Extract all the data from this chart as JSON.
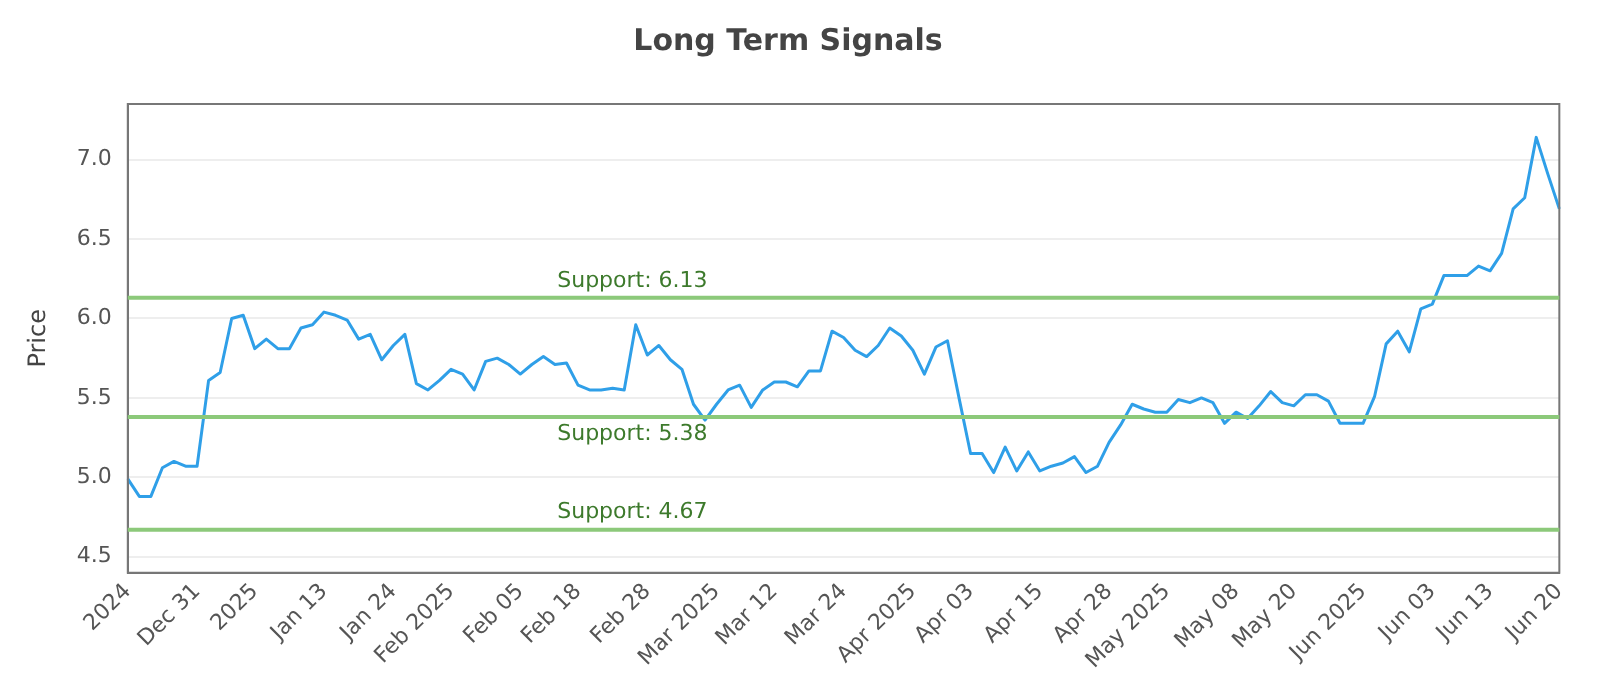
{
  "chart_data": {
    "type": "line",
    "title": "Long Term Signals",
    "ylabel": "Price",
    "categories": [
      "2024",
      null,
      null,
      null,
      null,
      null,
      "Dec 31",
      null,
      null,
      null,
      null,
      "2025",
      null,
      null,
      null,
      null,
      null,
      "Jan 13",
      null,
      null,
      null,
      null,
      null,
      "Jan 24",
      null,
      null,
      null,
      null,
      "Feb 2025",
      null,
      null,
      null,
      null,
      null,
      "Feb 05",
      null,
      null,
      null,
      null,
      "Feb 18",
      null,
      null,
      null,
      null,
      null,
      "Feb 28",
      null,
      null,
      null,
      null,
      null,
      "Mar 2025",
      null,
      null,
      null,
      null,
      "Mar 12",
      null,
      null,
      null,
      null,
      null,
      "Mar 24",
      null,
      null,
      null,
      null,
      null,
      "Apr 2025",
      null,
      null,
      null,
      null,
      "Apr 03",
      null,
      null,
      null,
      null,
      null,
      "Apr 15",
      null,
      null,
      null,
      null,
      null,
      "Apr 28",
      null,
      null,
      null,
      null,
      "May 2025",
      null,
      null,
      null,
      null,
      null,
      "May 08",
      null,
      null,
      null,
      null,
      "May 20",
      null,
      null,
      null,
      null,
      null,
      "Jun 2025",
      null,
      null,
      null,
      null,
      null,
      "Jun 03",
      null,
      null,
      null,
      null,
      "Jun 13",
      null,
      null,
      null,
      null,
      null,
      "Jun 20"
    ],
    "series": [
      {
        "color": "#2f9fe8",
        "values": [
          4.99,
          4.88,
          4.88,
          5.06,
          5.1,
          5.07,
          5.07,
          5.61,
          5.66,
          6.0,
          6.02,
          5.81,
          5.87,
          5.81,
          5.81,
          5.94,
          5.96,
          6.04,
          6.02,
          5.99,
          5.87,
          5.9,
          5.74,
          5.83,
          5.9,
          5.59,
          5.55,
          5.61,
          5.68,
          5.65,
          5.55,
          5.73,
          5.75,
          5.71,
          5.65,
          5.71,
          5.76,
          5.71,
          5.72,
          5.58,
          5.55,
          5.55,
          5.56,
          5.55,
          5.96,
          5.77,
          5.83,
          5.74,
          5.68,
          5.46,
          5.36,
          5.46,
          5.55,
          5.58,
          5.44,
          5.55,
          5.6,
          5.6,
          5.57,
          5.67,
          5.67,
          5.92,
          5.88,
          5.8,
          5.76,
          5.83,
          5.94,
          5.89,
          5.8,
          5.65,
          5.82,
          5.86,
          5.5,
          5.15,
          5.15,
          5.03,
          5.19,
          5.04,
          5.16,
          5.04,
          5.07,
          5.09,
          5.13,
          5.03,
          5.07,
          5.22,
          5.33,
          5.46,
          5.43,
          5.41,
          5.41,
          5.49,
          5.47,
          5.5,
          5.47,
          5.34,
          5.41,
          5.37,
          5.45,
          5.54,
          5.47,
          5.45,
          5.52,
          5.52,
          5.48,
          5.34,
          5.34,
          5.34,
          5.51,
          5.84,
          5.92,
          5.79,
          6.06,
          6.09,
          6.27,
          6.27,
          6.27,
          6.33,
          6.3,
          6.41,
          6.69,
          6.76,
          7.14,
          6.91,
          6.69
        ]
      }
    ],
    "ylim": [
      4.4,
      7.35
    ],
    "yticks": [
      4.5,
      {
        "value": 5,
        "label": "5.0"
      },
      5.5,
      {
        "value": 6,
        "label": "6.0"
      },
      6.5,
      {
        "value": 7,
        "label": "7.0"
      }
    ],
    "grid": "y",
    "legend": false,
    "marker": "none",
    "line_style": "solid",
    "ref_lines": [
      {
        "axis": "y",
        "value": 6.13,
        "label": "Support: 6.13",
        "color": "#8cc97a"
      },
      {
        "axis": "y",
        "value": 5.38,
        "label": "Support: 5.38",
        "color": "#8cc97a"
      },
      {
        "axis": "y",
        "value": 4.67,
        "label": "Support: 4.67",
        "color": "#8cc97a"
      }
    ]
  }
}
